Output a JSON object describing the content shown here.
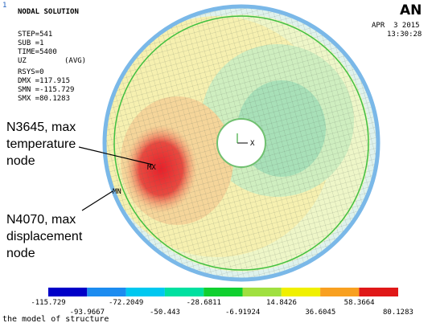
{
  "header": {
    "window_number": "1",
    "title": "NODAL SOLUTION",
    "lines": [
      "STEP=541",
      "SUB =1",
      "TIME=5400",
      "UZ",
      "(AVG)",
      "RSYS=0",
      "DMX =117.915",
      "SMN =-115.729",
      "SMX =80.1283"
    ],
    "logo": "AN",
    "date": "APR  3 2015",
    "time": "13:30:28"
  },
  "plot": {
    "mx_label": "MX",
    "mn_label": "MN",
    "axis_label": "X"
  },
  "annotations": [
    {
      "lines": [
        "N3645, max",
        "temperature",
        "node"
      ]
    },
    {
      "lines": [
        "N4070, max",
        "displacement",
        "node"
      ]
    }
  ],
  "legend": {
    "labels": [
      "-115.729",
      "-93.9667",
      "-72.2049",
      "-50.443",
      "-28.6811",
      "-6.91924",
      "14.8426",
      "36.6045",
      "58.3664",
      "80.1283"
    ]
  },
  "footer": "the model of structure"
}
